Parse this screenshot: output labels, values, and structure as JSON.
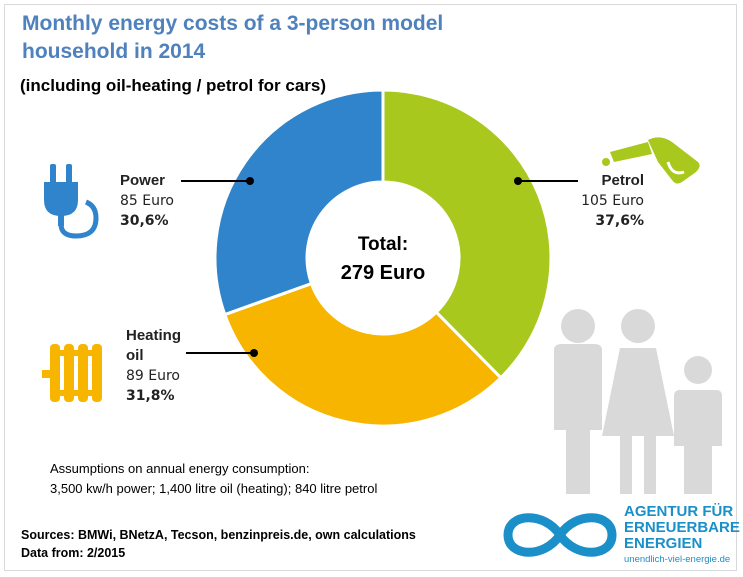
{
  "header": {
    "title": "Monthly energy costs of a 3-person model household in 2014",
    "subtitle": "(including oil-heating / petrol for cars)"
  },
  "chart_data": {
    "type": "pie",
    "donut": true,
    "title": "Monthly energy costs of a 3-person model household in 2014",
    "subtitle": "(including oil-heating / petrol for cars)",
    "center_label": [
      "Total:",
      "279 Euro"
    ],
    "slices": [
      {
        "name": "Petrol",
        "value": 105,
        "value_label": "105 Euro",
        "percent_label": "37,6%",
        "color": "#a8c81e"
      },
      {
        "name": "Heating oil",
        "value": 89,
        "value_label": "89 Euro",
        "percent_label": "31,8%",
        "color": "#f7b500"
      },
      {
        "name": "Power",
        "value": 85,
        "value_label": "85 Euro",
        "percent_label": "30,6%",
        "color": "#2f84cb"
      }
    ],
    "total": 279
  },
  "labels": {
    "power": {
      "name": "Power",
      "amount": "85 Euro",
      "pct": "30,6%"
    },
    "petrol": {
      "name": "Petrol",
      "amount": "105 Euro",
      "pct": "37,6%"
    },
    "heating": {
      "name1": "Heating",
      "name2": "oil",
      "amount": "89 Euro",
      "pct": "31,8%"
    }
  },
  "center": {
    "line1": "Total:",
    "line2": "279 Euro"
  },
  "assumptions": {
    "line1": "Assumptions on annual energy consumption:",
    "line2": "3,500 kw/h power; 1,400 litre oil (heating); 840 litre petrol"
  },
  "sources": {
    "line1": "Sources: BMWi, BNetzA, Tecson, benzinpreis.de, own calculations",
    "line2": "Data from: 2/2015"
  },
  "logo": {
    "line1": "AGENTUR FÜR",
    "line2": "ERNEUERBARE",
    "line3": "ENERGIEN",
    "url": "unendlich-viel-energie.de"
  },
  "colors": {
    "title": "#4f81bd",
    "petrol": "#a8c81e",
    "heating": "#f7b500",
    "power": "#2f84cb",
    "people": "#d9d9d9",
    "logo": "#1a8fc8"
  },
  "icons": [
    "plug-icon",
    "fuel-nozzle-icon",
    "radiator-icon",
    "family-icon",
    "infinity-logo-icon"
  ]
}
